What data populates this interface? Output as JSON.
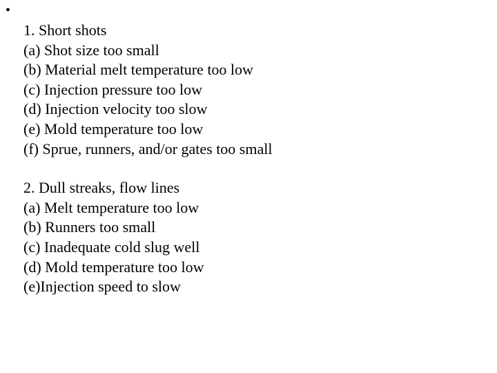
{
  "bullet": "•",
  "sections": [
    {
      "title": "1. Short shots",
      "items": [
        "(a) Shot size too small",
        "(b) Material melt temperature too low",
        "(c) Injection pressure too low",
        "(d) Injection velocity too slow",
        "(e) Mold temperature too low",
        "(f) Sprue, runners, and/or gates too small"
      ]
    },
    {
      "title": "2. Dull streaks, flow lines",
      "items": [
        "(a) Melt temperature too low",
        "(b) Runners too small",
        "(c) Inadequate cold slug well",
        "(d) Mold temperature too low",
        "(e)Injection speed to slow"
      ]
    }
  ],
  "style": {
    "background_color": "#ffffff",
    "text_color": "#000000",
    "font_family": "Times New Roman",
    "font_size_pt": 16,
    "line_height": 1.3
  }
}
